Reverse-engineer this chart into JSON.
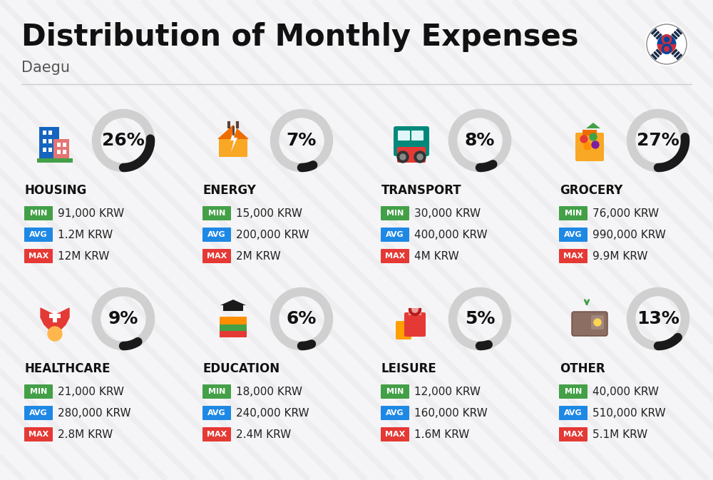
{
  "title": "Distribution of Monthly Expenses",
  "subtitle": "Daegu",
  "background_color": "#f5f5f7",
  "stripe_color": "#e8e8ec",
  "categories": [
    {
      "name": "HOUSING",
      "percent": 26,
      "icon_color1": "#1565c0",
      "icon_color2": "#e57373",
      "min": "91,000 KRW",
      "avg": "1.2M KRW",
      "max": "12M KRW",
      "row": 0,
      "col": 0
    },
    {
      "name": "ENERGY",
      "percent": 7,
      "min": "15,000 KRW",
      "avg": "200,000 KRW",
      "max": "2M KRW",
      "row": 0,
      "col": 1
    },
    {
      "name": "TRANSPORT",
      "percent": 8,
      "min": "30,000 KRW",
      "avg": "400,000 KRW",
      "max": "4M KRW",
      "row": 0,
      "col": 2
    },
    {
      "name": "GROCERY",
      "percent": 27,
      "min": "76,000 KRW",
      "avg": "990,000 KRW",
      "max": "9.9M KRW",
      "row": 0,
      "col": 3
    },
    {
      "name": "HEALTHCARE",
      "percent": 9,
      "min": "21,000 KRW",
      "avg": "280,000 KRW",
      "max": "2.8M KRW",
      "row": 1,
      "col": 0
    },
    {
      "name": "EDUCATION",
      "percent": 6,
      "min": "18,000 KRW",
      "avg": "240,000 KRW",
      "max": "2.4M KRW",
      "row": 1,
      "col": 1
    },
    {
      "name": "LEISURE",
      "percent": 5,
      "min": "12,000 KRW",
      "avg": "160,000 KRW",
      "max": "1.6M KRW",
      "row": 1,
      "col": 2
    },
    {
      "name": "OTHER",
      "percent": 13,
      "min": "40,000 KRW",
      "avg": "510,000 KRW",
      "max": "5.1M KRW",
      "row": 1,
      "col": 3
    }
  ],
  "min_color": "#43a047",
  "avg_color": "#1e88e5",
  "max_color": "#e53935",
  "ring_bg_color": "#d0d0d0",
  "ring_fill_color": "#1a1a1a",
  "title_fontsize": 30,
  "subtitle_fontsize": 15,
  "percent_fontsize": 18,
  "cat_fontsize": 11,
  "value_fontsize": 11,
  "badge_fontsize": 8
}
